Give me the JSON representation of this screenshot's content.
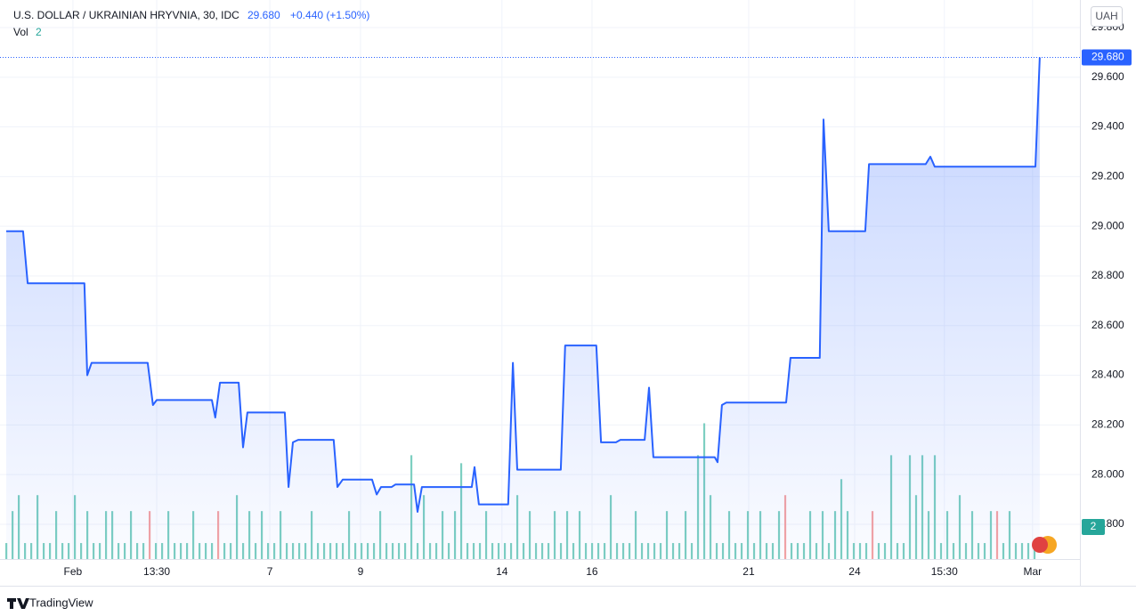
{
  "header": {
    "symbol": "U.S. DOLLAR / UKRAINIAN HRYVNIA, 30, IDC",
    "price": "29.680",
    "change": "+0.440 (+1.50%)",
    "vol_label": "Vol",
    "currency": "UAH",
    "brand": "TradingView"
  },
  "chart_data": {
    "type": "line",
    "x": [
      0,
      5.4,
      6.9,
      25.1,
      26,
      27.4,
      45.4,
      47.1,
      48.3,
      66,
      67.1,
      68.6,
      74.6,
      76,
      77.4,
      89.4,
      90.6,
      92,
      93.7,
      105.1,
      106.3,
      108,
      117.4,
      118.9,
      120.3,
      123.7,
      124.9,
      130.9,
      132,
      133.4,
      149.4,
      150.3,
      151.7,
      161.1,
      162.6,
      164,
      178,
      179.4,
      189.4,
      190.9,
      195.7,
      197.1,
      204.9,
      206.3,
      207.7,
      227.4,
      228.3,
      229.7,
      231.1,
      250.3,
      251.7,
      261.1,
      262.3,
      264,
      275.7,
      276.9,
      295.1,
      296.6,
      298,
      330.3,
      331.7
    ],
    "series": [
      {
        "color": "#2962ff",
        "values": [
          28.98,
          28.98,
          28.77,
          28.77,
          28.4,
          28.45,
          28.45,
          28.28,
          28.3,
          28.3,
          28.23,
          28.37,
          28.37,
          28.11,
          28.25,
          28.25,
          27.95,
          28.13,
          28.14,
          28.14,
          27.95,
          27.98,
          27.98,
          27.92,
          27.95,
          27.95,
          27.96,
          27.96,
          27.85,
          27.95,
          27.95,
          28.03,
          27.88,
          27.88,
          28.45,
          28.02,
          28.02,
          28.52,
          28.52,
          28.13,
          28.13,
          28.14,
          28.14,
          28.35,
          28.07,
          28.07,
          28.05,
          28.28,
          28.29,
          28.29,
          28.47,
          28.47,
          29.43,
          28.98,
          28.98,
          29.25,
          29.25,
          29.28,
          29.24,
          29.24,
          29.68
        ]
      }
    ],
    "xlim": [
      -2,
      344.6
    ],
    "ylim": [
      27.66,
      29.911
    ],
    "yticks": [
      {
        "value": 27.8,
        "label": "27.800"
      },
      {
        "value": 28.0,
        "label": "28.000"
      },
      {
        "value": 28.2,
        "label": "28.200"
      },
      {
        "value": 28.4,
        "label": "28.400"
      },
      {
        "value": 28.6,
        "label": "28.600"
      },
      {
        "value": 28.8,
        "label": "28.800"
      },
      {
        "value": 29.0,
        "label": "29.000"
      },
      {
        "value": 29.2,
        "label": "29.200"
      },
      {
        "value": 29.4,
        "label": "29.400"
      },
      {
        "value": 29.6,
        "label": "29.600"
      },
      {
        "value": 29.8,
        "label": "29.800"
      }
    ],
    "xticks": [
      {
        "value": 21.4,
        "label": "Feb"
      },
      {
        "value": 48.3,
        "label": "13:30"
      },
      {
        "value": 84.6,
        "label": "7"
      },
      {
        "value": 113.7,
        "label": "9"
      },
      {
        "value": 159.1,
        "label": "14"
      },
      {
        "value": 188,
        "label": "16"
      },
      {
        "value": 238.3,
        "label": "21"
      },
      {
        "value": 272.3,
        "label": "24"
      },
      {
        "value": 301.1,
        "label": "15:30"
      },
      {
        "value": 329.4,
        "label": "Mar"
      }
    ],
    "grid": true,
    "volume": {
      "up_color": "#7dcfc1",
      "down_color": "#f5a3a3",
      "x_step": 2,
      "ylim": [
        0,
        70
      ],
      "down_bars": [
        23,
        34,
        125,
        139,
        159
      ],
      "values": [
        2,
        6,
        8,
        2,
        2,
        8,
        2,
        2,
        6,
        2,
        2,
        8,
        2,
        6,
        2,
        2,
        6,
        6,
        2,
        2,
        6,
        2,
        2,
        6,
        2,
        2,
        6,
        2,
        2,
        2,
        6,
        2,
        2,
        2,
        6,
        2,
        2,
        8,
        2,
        6,
        2,
        6,
        2,
        2,
        6,
        2,
        2,
        2,
        2,
        6,
        2,
        2,
        2,
        2,
        2,
        6,
        2,
        2,
        2,
        2,
        6,
        2,
        2,
        2,
        2,
        13,
        2,
        8,
        2,
        2,
        6,
        2,
        6,
        12,
        2,
        2,
        2,
        6,
        2,
        2,
        2,
        2,
        8,
        2,
        6,
        2,
        2,
        2,
        6,
        2,
        6,
        2,
        6,
        2,
        2,
        2,
        2,
        8,
        2,
        2,
        2,
        6,
        2,
        2,
        2,
        2,
        6,
        2,
        2,
        6,
        2,
        13,
        17,
        8,
        2,
        2,
        6,
        2,
        2,
        6,
        2,
        6,
        2,
        2,
        6,
        8,
        2,
        2,
        2,
        6,
        2,
        6,
        2,
        6,
        10,
        6,
        2,
        2,
        2,
        6,
        2,
        2,
        13,
        2,
        2,
        13,
        8,
        13,
        6,
        13,
        2,
        6,
        2,
        8,
        2,
        6,
        2,
        2,
        6,
        6,
        2,
        6,
        2,
        2,
        2,
        2
      ]
    }
  }
}
